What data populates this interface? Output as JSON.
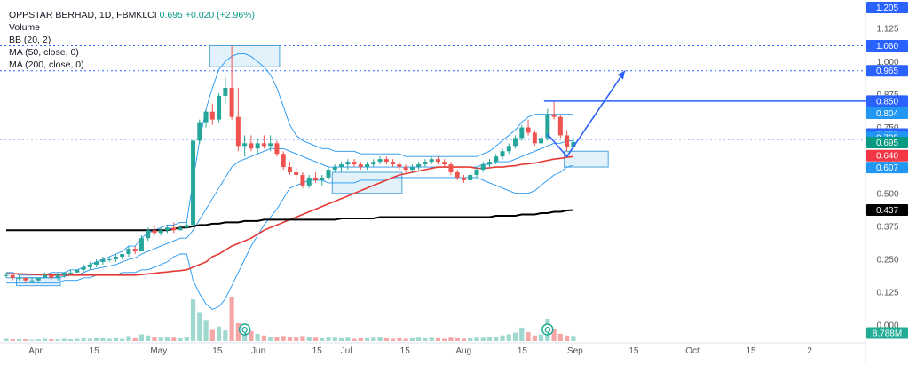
{
  "legend": {
    "symbol": "OPPSTAR BERHAD, 1D, FBMKLCI",
    "price": "0.695",
    "change": "+0.020 (+2.96%)",
    "volume": "Volume",
    "bb": "BB (20, 2)",
    "ma50": "MA (50, close, 0)",
    "ma200": "MA (200, close, 0)"
  },
  "colors": {
    "up": "#26a69a",
    "down": "#ef5350",
    "volume_up": "#9fd8cf",
    "volume_down": "#f5a6a6",
    "bb": "#2196f3",
    "ma50": "#e53935",
    "ma200": "#000000",
    "projection": "#2962ff",
    "zone_fill": "#d7ecf8",
    "zone_stroke": "#4aa3df"
  },
  "chart_data": {
    "type": "candlestick",
    "title": "",
    "y_axis": {
      "scale": "linear",
      "ticks": [
        "1.125",
        "1.000",
        "0.875",
        "0.750",
        "0.625",
        "0.500",
        "0.375",
        "0.250",
        "0.125",
        "0.000"
      ],
      "range": [
        -0.06,
        1.22
      ]
    },
    "x_axis": {
      "ticks": [
        "Apr",
        "15",
        "May",
        "15",
        "Jun",
        "15",
        "Jul",
        "15",
        "Aug",
        "15",
        "Sep",
        "15",
        "Oct",
        "15",
        "2"
      ]
    },
    "price_labels": [
      {
        "text": "1.205",
        "bg": "#2962ff",
        "fg": "#ffffff"
      },
      {
        "text": "1.060",
        "bg": "#2962ff",
        "fg": "#ffffff"
      },
      {
        "text": "0.965",
        "bg": "#2962ff",
        "fg": "#ffffff"
      },
      {
        "text": "0.850",
        "bg": "#2962ff",
        "fg": "#ffffff"
      },
      {
        "text": "0.804",
        "bg": "#2196f3",
        "fg": "#ffffff"
      },
      {
        "text": "0.725",
        "bg": "#2962ff",
        "fg": "#ffffff"
      },
      {
        "text": "0.705",
        "bg": "#2196f3",
        "fg": "#ffffff"
      },
      {
        "text": "0.695",
        "bg": "#089981",
        "fg": "#ffffff"
      },
      {
        "text": "0.640",
        "bg": "#f23645",
        "fg": "#ffffff"
      },
      {
        "text": "0.607",
        "bg": "#2196f3",
        "fg": "#ffffff"
      },
      {
        "text": "0.437",
        "bg": "#000000",
        "fg": "#ffffff"
      },
      {
        "text": "8.788M",
        "bg": "#22ab94",
        "fg": "#ffffff"
      }
    ],
    "horizontal_levels": [
      1.06,
      0.965,
      0.705
    ],
    "candles": [
      [
        0.19,
        0.2,
        0.18,
        0.19
      ],
      [
        0.19,
        0.19,
        0.17,
        0.18
      ],
      [
        0.18,
        0.19,
        0.17,
        0.18
      ],
      [
        0.18,
        0.18,
        0.16,
        0.17
      ],
      [
        0.17,
        0.18,
        0.16,
        0.17
      ],
      [
        0.17,
        0.18,
        0.16,
        0.18
      ],
      [
        0.18,
        0.2,
        0.18,
        0.19
      ],
      [
        0.19,
        0.2,
        0.17,
        0.18
      ],
      [
        0.18,
        0.2,
        0.17,
        0.19
      ],
      [
        0.19,
        0.2,
        0.18,
        0.2
      ],
      [
        0.2,
        0.21,
        0.19,
        0.2
      ],
      [
        0.2,
        0.21,
        0.2,
        0.21
      ],
      [
        0.21,
        0.23,
        0.2,
        0.22
      ],
      [
        0.22,
        0.24,
        0.21,
        0.23
      ],
      [
        0.23,
        0.25,
        0.22,
        0.24
      ],
      [
        0.24,
        0.26,
        0.23,
        0.25
      ],
      [
        0.25,
        0.26,
        0.24,
        0.25
      ],
      [
        0.25,
        0.27,
        0.24,
        0.26
      ],
      [
        0.26,
        0.27,
        0.25,
        0.27
      ],
      [
        0.27,
        0.3,
        0.26,
        0.29
      ],
      [
        0.29,
        0.3,
        0.27,
        0.28
      ],
      [
        0.28,
        0.34,
        0.28,
        0.33
      ],
      [
        0.33,
        0.37,
        0.32,
        0.36
      ],
      [
        0.36,
        0.38,
        0.34,
        0.35
      ],
      [
        0.35,
        0.37,
        0.34,
        0.36
      ],
      [
        0.36,
        0.38,
        0.35,
        0.37
      ],
      [
        0.37,
        0.39,
        0.35,
        0.36
      ],
      [
        0.36,
        0.38,
        0.36,
        0.37
      ],
      [
        0.37,
        0.39,
        0.37,
        0.38
      ],
      [
        0.38,
        0.7,
        0.38,
        0.7
      ],
      [
        0.7,
        0.78,
        0.69,
        0.77
      ],
      [
        0.77,
        0.82,
        0.75,
        0.81
      ],
      [
        0.81,
        0.84,
        0.76,
        0.78
      ],
      [
        0.78,
        0.88,
        0.77,
        0.87
      ],
      [
        0.87,
        0.94,
        0.84,
        0.9
      ],
      [
        0.9,
        1.06,
        0.78,
        0.79
      ],
      [
        0.79,
        0.9,
        0.66,
        0.68
      ],
      [
        0.68,
        0.72,
        0.64,
        0.69
      ],
      [
        0.69,
        0.72,
        0.66,
        0.67
      ],
      [
        0.67,
        0.71,
        0.65,
        0.69
      ],
      [
        0.69,
        0.72,
        0.67,
        0.68
      ],
      [
        0.68,
        0.72,
        0.66,
        0.69
      ],
      [
        0.69,
        0.7,
        0.64,
        0.65
      ],
      [
        0.65,
        0.66,
        0.59,
        0.6
      ],
      [
        0.6,
        0.62,
        0.57,
        0.58
      ],
      [
        0.58,
        0.6,
        0.55,
        0.57
      ],
      [
        0.57,
        0.58,
        0.52,
        0.53
      ],
      [
        0.53,
        0.57,
        0.52,
        0.56
      ],
      [
        0.56,
        0.58,
        0.54,
        0.55
      ],
      [
        0.55,
        0.57,
        0.53,
        0.56
      ],
      [
        0.56,
        0.6,
        0.55,
        0.59
      ],
      [
        0.59,
        0.61,
        0.58,
        0.6
      ],
      [
        0.6,
        0.62,
        0.58,
        0.61
      ],
      [
        0.61,
        0.63,
        0.59,
        0.62
      ],
      [
        0.62,
        0.63,
        0.6,
        0.61
      ],
      [
        0.61,
        0.62,
        0.59,
        0.6
      ],
      [
        0.6,
        0.62,
        0.59,
        0.61
      ],
      [
        0.61,
        0.63,
        0.6,
        0.62
      ],
      [
        0.62,
        0.64,
        0.61,
        0.63
      ],
      [
        0.63,
        0.64,
        0.61,
        0.62
      ],
      [
        0.62,
        0.63,
        0.6,
        0.61
      ],
      [
        0.61,
        0.62,
        0.59,
        0.6
      ],
      [
        0.6,
        0.61,
        0.58,
        0.59
      ],
      [
        0.59,
        0.61,
        0.58,
        0.6
      ],
      [
        0.6,
        0.62,
        0.59,
        0.61
      ],
      [
        0.61,
        0.63,
        0.6,
        0.62
      ],
      [
        0.62,
        0.64,
        0.61,
        0.63
      ],
      [
        0.63,
        0.64,
        0.61,
        0.62
      ],
      [
        0.62,
        0.63,
        0.6,
        0.61
      ],
      [
        0.61,
        0.62,
        0.57,
        0.58
      ],
      [
        0.58,
        0.59,
        0.55,
        0.56
      ],
      [
        0.56,
        0.57,
        0.54,
        0.55
      ],
      [
        0.55,
        0.58,
        0.54,
        0.57
      ],
      [
        0.57,
        0.6,
        0.56,
        0.59
      ],
      [
        0.59,
        0.62,
        0.58,
        0.61
      ],
      [
        0.61,
        0.63,
        0.6,
        0.62
      ],
      [
        0.62,
        0.65,
        0.61,
        0.64
      ],
      [
        0.64,
        0.67,
        0.63,
        0.66
      ],
      [
        0.66,
        0.69,
        0.65,
        0.68
      ],
      [
        0.68,
        0.72,
        0.67,
        0.71
      ],
      [
        0.71,
        0.76,
        0.7,
        0.75
      ],
      [
        0.75,
        0.78,
        0.72,
        0.73
      ],
      [
        0.73,
        0.74,
        0.68,
        0.69
      ],
      [
        0.69,
        0.72,
        0.67,
        0.71
      ],
      [
        0.71,
        0.82,
        0.7,
        0.8
      ],
      [
        0.8,
        0.85,
        0.78,
        0.79
      ],
      [
        0.79,
        0.8,
        0.71,
        0.72
      ],
      [
        0.72,
        0.74,
        0.66,
        0.675
      ],
      [
        0.675,
        0.71,
        0.67,
        0.695
      ]
    ],
    "volume_scale_max": 8.788,
    "volume": [
      0.4,
      0.3,
      0.3,
      0.3,
      0.2,
      0.3,
      0.4,
      0.3,
      0.3,
      0.4,
      0.3,
      0.4,
      0.5,
      0.4,
      0.5,
      0.5,
      0.4,
      0.5,
      0.4,
      0.9,
      0.5,
      1.2,
      1.0,
      0.8,
      0.6,
      0.7,
      0.6,
      0.5,
      0.7,
      7.5,
      5.2,
      3.8,
      2.0,
      2.6,
      1.9,
      8.0,
      3.2,
      2.4,
      1.8,
      1.3,
      1.0,
      0.8,
      0.7,
      0.9,
      0.8,
      0.6,
      0.9,
      0.7,
      0.6,
      0.5,
      0.8,
      0.6,
      0.5,
      0.6,
      0.4,
      0.5,
      0.5,
      0.6,
      0.7,
      0.5,
      0.4,
      0.5,
      0.4,
      0.5,
      0.6,
      0.5,
      0.6,
      0.5,
      0.4,
      0.6,
      0.5,
      0.4,
      0.5,
      0.6,
      0.6,
      0.7,
      0.8,
      1.0,
      1.2,
      1.5,
      2.4,
      1.6,
      1.0,
      1.2,
      4.0,
      2.2,
      1.3,
      1.0,
      0.9
    ],
    "earnings_markers": [
      37,
      84
    ],
    "series": [
      {
        "name": "BB (20, 2) basis",
        "values": [
          0.18,
          0.18,
          0.18,
          0.18,
          0.18,
          0.18,
          0.18,
          0.18,
          0.18,
          0.185,
          0.19,
          0.19,
          0.2,
          0.21,
          0.215,
          0.22,
          0.225,
          0.23,
          0.24,
          0.25,
          0.255,
          0.27,
          0.28,
          0.29,
          0.3,
          0.31,
          0.32,
          0.33,
          0.33,
          0.36,
          0.4,
          0.44,
          0.48,
          0.52,
          0.56,
          0.6,
          0.62,
          0.63,
          0.64,
          0.65,
          0.66,
          0.67,
          0.67,
          0.67,
          0.66,
          0.65,
          0.64,
          0.63,
          0.62,
          0.61,
          0.6,
          0.6,
          0.6,
          0.6,
          0.6,
          0.6,
          0.6,
          0.6,
          0.6,
          0.6,
          0.6,
          0.6,
          0.6,
          0.6,
          0.6,
          0.6,
          0.6,
          0.6,
          0.6,
          0.6,
          0.6,
          0.6,
          0.6,
          0.6,
          0.61,
          0.61,
          0.62,
          0.62,
          0.62,
          0.63,
          0.64,
          0.65,
          0.66,
          0.67,
          0.68,
          0.69,
          0.69,
          0.7,
          0.7
        ]
      },
      {
        "name": "BB (20, 2) upper",
        "values": [
          0.2,
          0.2,
          0.19,
          0.19,
          0.19,
          0.19,
          0.19,
          0.2,
          0.2,
          0.2,
          0.21,
          0.21,
          0.22,
          0.23,
          0.24,
          0.25,
          0.26,
          0.27,
          0.28,
          0.3,
          0.3,
          0.33,
          0.35,
          0.36,
          0.37,
          0.38,
          0.38,
          0.39,
          0.39,
          0.55,
          0.7,
          0.82,
          0.9,
          0.97,
          1.0,
          1.02,
          1.03,
          1.03,
          1.02,
          1.0,
          0.98,
          0.95,
          0.9,
          0.83,
          0.76,
          0.72,
          0.7,
          0.69,
          0.68,
          0.67,
          0.67,
          0.66,
          0.66,
          0.66,
          0.66,
          0.65,
          0.65,
          0.65,
          0.65,
          0.65,
          0.65,
          0.65,
          0.64,
          0.64,
          0.64,
          0.64,
          0.64,
          0.64,
          0.64,
          0.64,
          0.64,
          0.64,
          0.64,
          0.64,
          0.65,
          0.66,
          0.68,
          0.7,
          0.72,
          0.74,
          0.77,
          0.79,
          0.8,
          0.8,
          0.8,
          0.8,
          0.8,
          0.8,
          0.8
        ]
      },
      {
        "name": "BB (20, 2) lower",
        "values": [
          0.16,
          0.16,
          0.16,
          0.16,
          0.16,
          0.16,
          0.16,
          0.16,
          0.16,
          0.17,
          0.17,
          0.17,
          0.18,
          0.18,
          0.19,
          0.19,
          0.19,
          0.19,
          0.2,
          0.2,
          0.2,
          0.21,
          0.21,
          0.22,
          0.23,
          0.24,
          0.26,
          0.27,
          0.27,
          0.17,
          0.12,
          0.08,
          0.06,
          0.07,
          0.1,
          0.15,
          0.2,
          0.25,
          0.3,
          0.34,
          0.38,
          0.41,
          0.44,
          0.48,
          0.52,
          0.53,
          0.54,
          0.55,
          0.55,
          0.55,
          0.54,
          0.54,
          0.54,
          0.54,
          0.54,
          0.55,
          0.55,
          0.55,
          0.55,
          0.55,
          0.56,
          0.56,
          0.56,
          0.56,
          0.56,
          0.56,
          0.56,
          0.56,
          0.56,
          0.56,
          0.56,
          0.56,
          0.56,
          0.56,
          0.55,
          0.54,
          0.53,
          0.52,
          0.51,
          0.5,
          0.5,
          0.5,
          0.51,
          0.53,
          0.55,
          0.57,
          0.58,
          0.6,
          0.607
        ]
      },
      {
        "name": "MA (50, close, 0)",
        "values": [
          0.195,
          0.195,
          0.195,
          0.194,
          0.193,
          0.192,
          0.191,
          0.19,
          0.19,
          0.19,
          0.19,
          0.19,
          0.19,
          0.19,
          0.19,
          0.19,
          0.19,
          0.19,
          0.19,
          0.19,
          0.19,
          0.192,
          0.195,
          0.197,
          0.2,
          0.202,
          0.205,
          0.207,
          0.21,
          0.22,
          0.23,
          0.24,
          0.26,
          0.27,
          0.285,
          0.3,
          0.31,
          0.32,
          0.33,
          0.345,
          0.36,
          0.37,
          0.38,
          0.39,
          0.4,
          0.41,
          0.42,
          0.43,
          0.44,
          0.45,
          0.46,
          0.47,
          0.48,
          0.49,
          0.5,
          0.51,
          0.52,
          0.53,
          0.54,
          0.55,
          0.56,
          0.57,
          0.575,
          0.58,
          0.585,
          0.59,
          0.595,
          0.6,
          0.6,
          0.6,
          0.6,
          0.6,
          0.6,
          0.595,
          0.595,
          0.597,
          0.6,
          0.6,
          0.603,
          0.605,
          0.61,
          0.612,
          0.615,
          0.62,
          0.625,
          0.63,
          0.633,
          0.637,
          0.64
        ]
      },
      {
        "name": "MA (200, close, 0)",
        "values": [
          0.36,
          0.36,
          0.36,
          0.36,
          0.36,
          0.36,
          0.36,
          0.36,
          0.36,
          0.36,
          0.36,
          0.36,
          0.36,
          0.36,
          0.36,
          0.36,
          0.36,
          0.36,
          0.36,
          0.36,
          0.36,
          0.36,
          0.36,
          0.36,
          0.36,
          0.36,
          0.365,
          0.37,
          0.37,
          0.375,
          0.38,
          0.38,
          0.385,
          0.385,
          0.39,
          0.39,
          0.39,
          0.395,
          0.395,
          0.395,
          0.4,
          0.4,
          0.4,
          0.4,
          0.4,
          0.4,
          0.4,
          0.4,
          0.4,
          0.4,
          0.4,
          0.4,
          0.405,
          0.405,
          0.405,
          0.405,
          0.405,
          0.405,
          0.41,
          0.41,
          0.41,
          0.41,
          0.41,
          0.41,
          0.41,
          0.41,
          0.41,
          0.41,
          0.41,
          0.41,
          0.41,
          0.41,
          0.41,
          0.41,
          0.41,
          0.41,
          0.415,
          0.415,
          0.415,
          0.415,
          0.42,
          0.42,
          0.42,
          0.425,
          0.425,
          0.43,
          0.43,
          0.435,
          0.437
        ]
      }
    ],
    "zones": [
      {
        "from_bar": 2,
        "to_bar": 8,
        "low": 0.15,
        "high": 0.18
      },
      {
        "from_bar": 32,
        "to_bar": 42,
        "low": 0.98,
        "high": 1.06
      },
      {
        "from_bar": 51,
        "to_bar": 61,
        "low": 0.5,
        "high": 0.58
      },
      {
        "from_bar": 87,
        "to_bar": 93,
        "low": 0.6,
        "high": 0.66
      }
    ],
    "projection": {
      "from_bar": 84,
      "from_price": 0.85,
      "points": [
        [
          84,
          0.725
        ],
        [
          87,
          0.64
        ],
        [
          96,
          0.965
        ]
      ],
      "level": 0.85
    }
  }
}
